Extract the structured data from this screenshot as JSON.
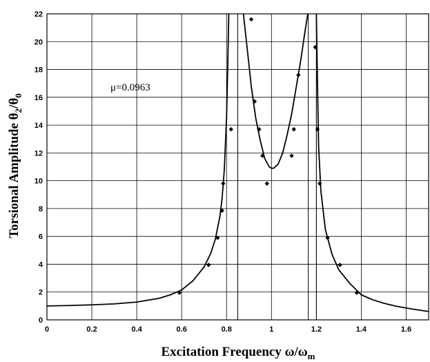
{
  "chart_data": {
    "type": "line",
    "title": "",
    "xlabel": "Excitation Frequency ω/ω",
    "xlabel_sub": "m",
    "ylabel": "Torsional Amplitude θ",
    "ylabel_sub1": "2",
    "ylabel_mid": "/θ",
    "ylabel_sub2": "0",
    "xlim": [
      0,
      1.7
    ],
    "ylim": [
      0,
      22
    ],
    "xticks": [
      0,
      0.2,
      0.4,
      0.6,
      0.8,
      1,
      1.2,
      1.4,
      1.6
    ],
    "xtick_labels": [
      "0",
      "0.2",
      "0.4",
      "0.6",
      "0.8",
      "1",
      "1.2",
      "1.4",
      "1.6"
    ],
    "yticks": [
      0,
      2,
      4,
      6,
      8,
      10,
      12,
      14,
      16,
      18,
      20,
      22
    ],
    "ytick_labels": [
      "0",
      "2",
      "4",
      "6",
      "8",
      "10",
      "12",
      "14",
      "16",
      "18",
      "20",
      "22"
    ],
    "grid": true,
    "annotation": "μ=0.0963",
    "vertical_lines": [
      0.85,
      1.164,
      1.2
    ],
    "series": [
      {
        "kind": "line",
        "x": [
          0,
          0.1,
          0.2,
          0.3,
          0.4,
          0.5,
          0.55,
          0.6,
          0.65,
          0.7,
          0.73,
          0.75,
          0.77,
          0.78,
          0.79,
          0.8,
          0.805,
          0.81
        ],
        "y": [
          1.0,
          1.03,
          1.08,
          1.15,
          1.28,
          1.55,
          1.8,
          2.15,
          2.8,
          3.8,
          4.8,
          5.8,
          7.4,
          8.7,
          10.8,
          14.5,
          18.0,
          22
        ]
      },
      {
        "kind": "line",
        "x": [
          0.875,
          0.89,
          0.91,
          0.93,
          0.95,
          0.97,
          0.99,
          1.0,
          1.01,
          1.03,
          1.05,
          1.07,
          1.09,
          1.11,
          1.13,
          1.15,
          1.162
        ],
        "y": [
          22,
          19.8,
          16.8,
          14.5,
          12.9,
          11.6,
          11.0,
          10.9,
          10.9,
          11.2,
          12.0,
          13.3,
          14.8,
          16.7,
          18.6,
          20.8,
          22
        ]
      },
      {
        "kind": "line",
        "x": [
          1.2,
          1.205,
          1.21,
          1.22,
          1.24,
          1.27,
          1.3,
          1.35,
          1.4,
          1.45,
          1.5,
          1.55,
          1.6,
          1.65,
          1.7
        ],
        "y": [
          22,
          17.0,
          12.5,
          9.3,
          6.5,
          4.7,
          3.6,
          2.6,
          1.8,
          1.45,
          1.2,
          1.0,
          0.85,
          0.72,
          0.6
        ]
      },
      {
        "kind": "scatter",
        "x": [
          0.59,
          0.72,
          0.76,
          0.78,
          0.785,
          0.82,
          0.91,
          0.925,
          0.945,
          0.96,
          0.98,
          1.09,
          1.1,
          1.12,
          1.195,
          1.205,
          1.215,
          1.25,
          1.305,
          1.38
        ],
        "y": [
          1.95,
          3.95,
          5.9,
          7.85,
          9.8,
          13.7,
          21.6,
          15.7,
          13.7,
          11.8,
          9.8,
          11.8,
          13.7,
          17.6,
          19.6,
          13.7,
          9.8,
          5.9,
          3.95,
          1.95
        ]
      }
    ]
  }
}
